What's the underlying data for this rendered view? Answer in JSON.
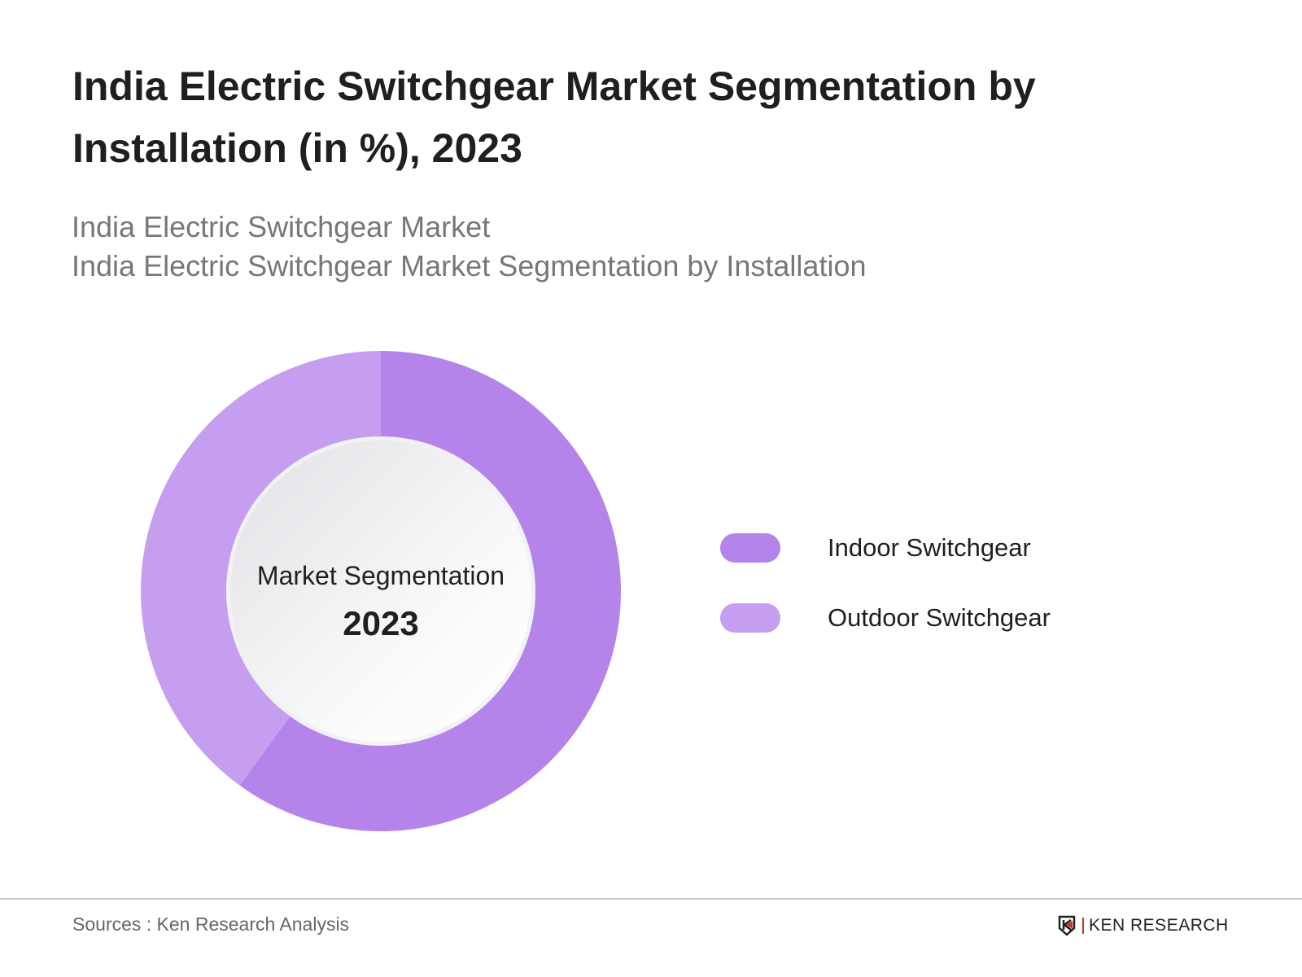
{
  "title": "India Electric Switchgear Market Segmentation by Installation (in %), 2023",
  "subtitles": [
    "India Electric Switchgear Market",
    "India Electric Switchgear Market Segmentation by Installation"
  ],
  "chart_data": {
    "type": "pie",
    "variant": "donut",
    "center_text": {
      "line1": "Market Segmentation",
      "line2": "2023"
    },
    "categories": [
      "Indoor Switchgear",
      "Outdoor Switchgear"
    ],
    "values": [
      60,
      40
    ],
    "colors": [
      "#b584eb",
      "#c69ef0"
    ],
    "legend_position": "right"
  },
  "footer": {
    "source": "Sources : Ken Research Analysis",
    "logo_text": "KEN RESEARCH"
  }
}
